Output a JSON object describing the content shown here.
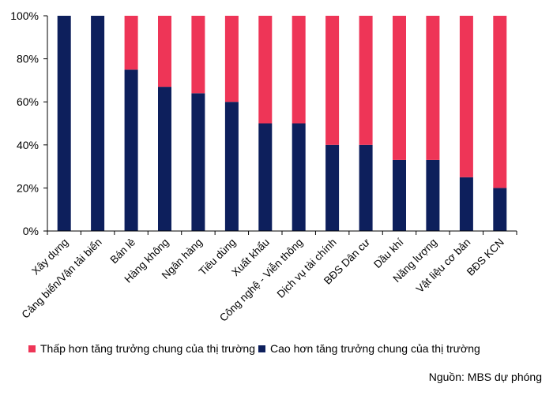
{
  "chart_data": {
    "type": "bar",
    "stacked": true,
    "percent": true,
    "categories": [
      "Xây dựng",
      "Cảng biển/Vận tải biển",
      "Bán lẻ",
      "Hàng không",
      "Ngân hàng",
      "Tiêu dùng",
      "Xuất khẩu",
      "Công nghệ - Viễn thông",
      "Dịch vụ tài chính",
      "BĐS Dân cư",
      "Dầu khí",
      "Năng lượng",
      "Vật liệu cơ bản",
      "BĐS KCN"
    ],
    "series": [
      {
        "name": "Cao hơn tăng trưởng chung của thị trường",
        "color": "#0d1f5c",
        "values": [
          100,
          100,
          75,
          67,
          64,
          60,
          50,
          50,
          40,
          40,
          33,
          33,
          25,
          20
        ]
      },
      {
        "name": "Thấp hơn tăng trưởng chung của thị trường",
        "color": "#ee3557",
        "values": [
          0,
          0,
          25,
          33,
          36,
          40,
          50,
          50,
          60,
          60,
          67,
          67,
          75,
          80
        ]
      }
    ],
    "ylim": [
      0,
      100
    ],
    "yticks": [
      "0%",
      "20%",
      "40%",
      "60%",
      "80%",
      "100%"
    ],
    "grid": false,
    "legend_position": "bottom"
  },
  "legend": {
    "items": [
      {
        "label": "Thấp hơn tăng trưởng chung của thị trường",
        "color": "#ee3557"
      },
      {
        "label": "Cao hơn tăng trưởng chung của thị trường",
        "color": "#0d1f5c"
      }
    ]
  },
  "source": "Nguồn: MBS dự phóng"
}
